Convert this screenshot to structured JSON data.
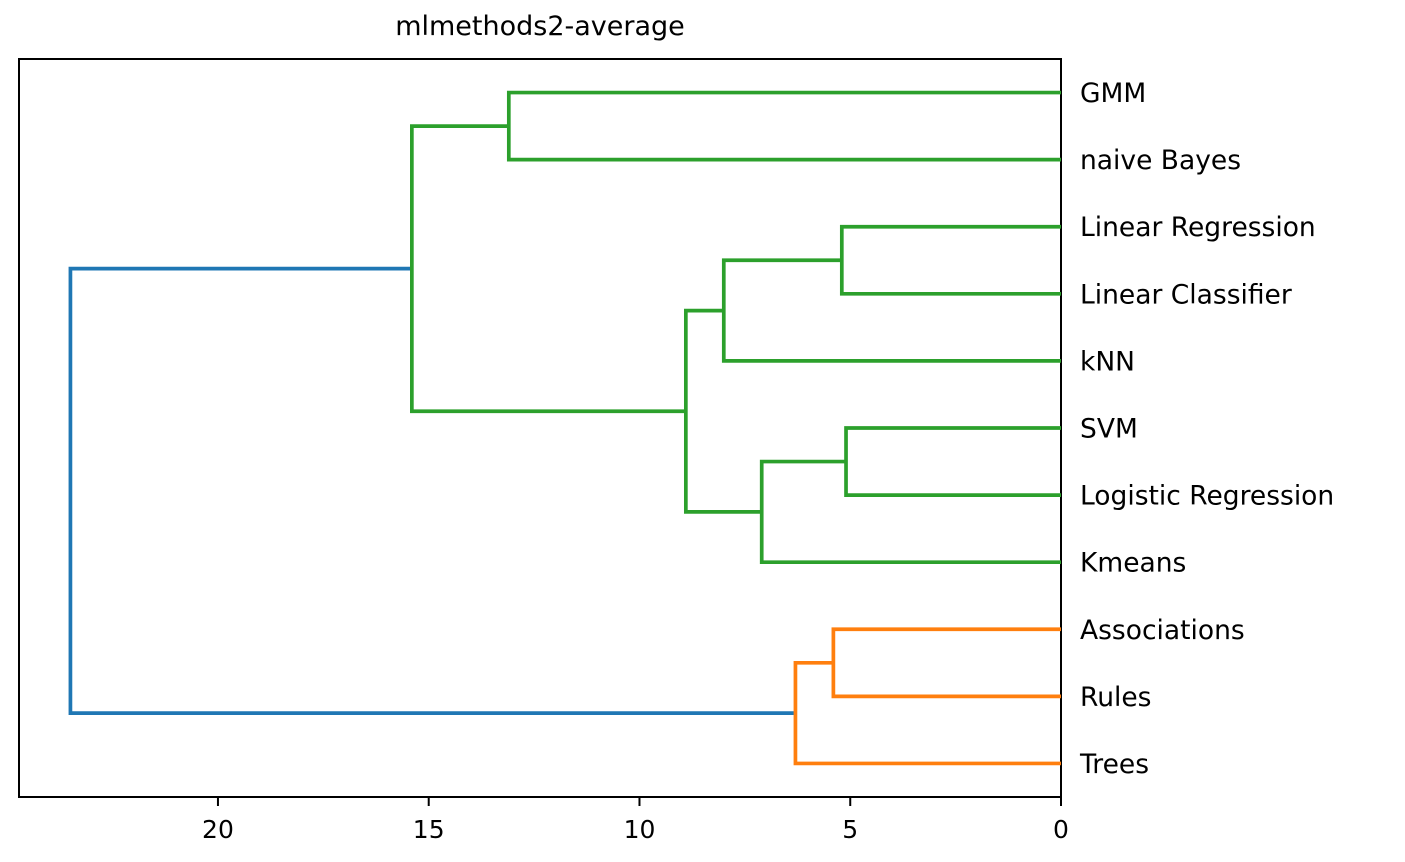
{
  "chart_data": {
    "type": "dendrogram",
    "title": "mlmethods2-average",
    "orientation": "left",
    "grid": false,
    "legend": null,
    "x_axis": {
      "ticks": [
        20,
        15,
        10,
        5,
        0
      ],
      "range": [
        24.72,
        0
      ],
      "reversed": true
    },
    "colors": {
      "root_link": "#1f77b4",
      "cluster_green": "#2ca02c",
      "cluster_orange": "#ff7f0e",
      "spine": "#000000",
      "text": "#000000",
      "background": "#ffffff"
    },
    "leaves": [
      "GMM",
      "naive Bayes",
      "Linear Regression",
      "Linear Classifier",
      "kNN",
      "SVM",
      "Logistic Regression",
      "Kmeans",
      "Associations",
      "Rules",
      "Trees"
    ],
    "linkage_tree": {
      "dist": 23.5,
      "color": "#1f77b4",
      "children": [
        {
          "dist": 15.4,
          "color": "#2ca02c",
          "children": [
            {
              "dist": 13.1,
              "color": "#2ca02c",
              "children": [
                {
                  "leaf": "GMM"
                },
                {
                  "leaf": "naive Bayes"
                }
              ]
            },
            {
              "dist": 8.9,
              "color": "#2ca02c",
              "children": [
                {
                  "dist": 8.0,
                  "color": "#2ca02c",
                  "children": [
                    {
                      "dist": 5.2,
                      "color": "#2ca02c",
                      "children": [
                        {
                          "leaf": "Linear Regression"
                        },
                        {
                          "leaf": "Linear Classifier"
                        }
                      ]
                    },
                    {
                      "leaf": "kNN"
                    }
                  ]
                },
                {
                  "dist": 7.1,
                  "color": "#2ca02c",
                  "children": [
                    {
                      "dist": 5.1,
                      "color": "#2ca02c",
                      "children": [
                        {
                          "leaf": "SVM"
                        },
                        {
                          "leaf": "Logistic Regression"
                        }
                      ]
                    },
                    {
                      "leaf": "Kmeans"
                    }
                  ]
                }
              ]
            }
          ]
        },
        {
          "dist": 6.3,
          "color": "#ff7f0e",
          "children": [
            {
              "dist": 5.4,
              "color": "#ff7f0e",
              "children": [
                {
                  "leaf": "Associations"
                },
                {
                  "leaf": "Rules"
                }
              ]
            },
            {
              "leaf": "Trees"
            }
          ]
        }
      ]
    }
  }
}
